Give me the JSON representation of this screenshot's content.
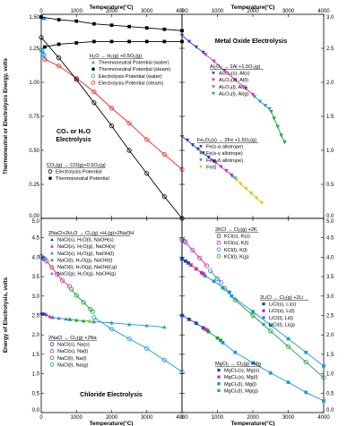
{
  "figure": {
    "top_axis_label": "Temperature(°C)",
    "bottom_axis_label": "Temperature(°C)",
    "top_left_y_label": "Thermoneutral or Electrolysis Energy, volts",
    "bottom_left_y_label": "Energy of Electrolysis, volts"
  },
  "chart_data": [
    {
      "type": "scatter",
      "panel": "top-left",
      "title": "CO₂ or H₂O Electrolysis",
      "xlim": [
        0,
        4000
      ],
      "ylim": [
        0,
        1.5
      ],
      "x_ticks": [
        "0",
        "1000",
        "2000",
        "3000",
        "4000"
      ],
      "y_ticks": [
        "0.00",
        "0.25",
        "0.50",
        "0.75",
        "1.00",
        "1.25",
        "1.50"
      ],
      "legend_groups": [
        {
          "heading": "H₂O → H₂(g) +0.5O₂(g)",
          "entries": [
            "Thermoneutral Potential (water)",
            "Thermoneutral Potential (steam)",
            "Electrolysis Potential (water)",
            "Electrolysis Potential (steam)"
          ]
        },
        {
          "heading": "CO₂(g) → CO(g)+0.5O₂(g)",
          "entries": [
            "Electrolysis Potential",
            "Thermoneutral Potential"
          ]
        }
      ],
      "series": [
        {
          "name": "Thermoneutral Potential (water)",
          "color": "#1a9bd7",
          "marker": "triangle-filled",
          "x": [
            0,
            25,
            50,
            75,
            100
          ],
          "y": [
            1.48,
            1.48,
            1.47,
            1.47,
            1.47
          ]
        },
        {
          "name": "Thermoneutral Potential (steam)",
          "color": "#000000",
          "marker": "square-filled",
          "x": [
            100,
            500,
            1000,
            1500,
            2000,
            2500,
            3000,
            3500,
            4000
          ],
          "y": [
            1.26,
            1.28,
            1.29,
            1.3,
            1.3,
            1.3,
            1.3,
            1.3,
            1.3
          ]
        },
        {
          "name": "Electrolysis Potential (water)",
          "color": "#1a9bd7",
          "marker": "circle-open",
          "x": [
            0,
            25,
            50,
            75,
            100
          ],
          "y": [
            1.24,
            1.23,
            1.21,
            1.2,
            1.17
          ]
        },
        {
          "name": "Electrolysis Potential (steam)",
          "color": "#e8281e",
          "marker": "circle-open",
          "x": [
            100,
            500,
            1000,
            1500,
            2000,
            2500,
            3000,
            3500,
            4000
          ],
          "y": [
            1.17,
            1.12,
            1.03,
            0.93,
            0.81,
            0.7,
            0.58,
            0.47,
            0.36
          ]
        },
        {
          "name": "Electrolysis Potential",
          "color": "#000000",
          "marker": "circle-open",
          "x": [
            0,
            500,
            1000,
            1500,
            2000,
            2500,
            3000,
            3500,
            4000
          ],
          "y": [
            1.33,
            1.18,
            1.02,
            0.85,
            0.68,
            0.5,
            0.33,
            0.16,
            0.0
          ]
        },
        {
          "name": "Thermoneutral Potential",
          "color": "#000000",
          "marker": "square-filled",
          "x": [
            0,
            500,
            1000,
            1500,
            2000,
            2500,
            3000,
            3500,
            4000
          ],
          "y": [
            1.48,
            1.46,
            1.45,
            1.43,
            1.42,
            1.41,
            1.4,
            1.39,
            1.38
          ]
        }
      ]
    },
    {
      "type": "scatter",
      "panel": "top-right",
      "title": "Metal Oxide Electrolysis",
      "xlim": [
        0,
        4000
      ],
      "ylim": [
        0,
        3.0
      ],
      "x_ticks": [
        "0",
        "1000",
        "2000",
        "3000",
        "4000"
      ],
      "y_ticks": [
        "0.0",
        "0.5",
        "1.0",
        "1.5",
        "2.0",
        "2.5",
        "3.0"
      ],
      "legend_groups": [
        {
          "heading": "Al₂O₃ → 2Al +1.5O₂(g)",
          "entries": [
            "Al₂O₃(s), Al(s)",
            "Al₂O₃(s), Al(l)",
            "Al₂O₃(l), Al(l)",
            "Al₂O₃(l), Al(g)"
          ]
        },
        {
          "heading": "Fe₂O₃(s) → 2Fe +1.5O₂(g)",
          "entries": [
            "Fe(s-α allotrope)",
            "Fe(s-γ allotrope)",
            "Fe(s-δ allotrope)",
            "Fe(l)"
          ]
        }
      ],
      "series": [
        {
          "name": "Al₂O₃(s), Al(s)",
          "color": "#1f3fa8",
          "marker": "triangle-down",
          "x": [
            0,
            200,
            400,
            600
          ],
          "y": [
            2.69,
            2.6,
            2.52,
            2.44
          ]
        },
        {
          "name": "Al₂O₃(s), Al(l)",
          "color": "#cc2aa8",
          "marker": "triangle-down",
          "x": [
            660,
            900,
            1200,
            1500,
            1800,
            2000
          ],
          "y": [
            2.41,
            2.31,
            2.17,
            2.04,
            1.91,
            1.82
          ]
        },
        {
          "name": "Al₂O₃(l), Al(l)",
          "color": "#2a8fd0",
          "marker": "triangle-down",
          "x": [
            2050,
            2200,
            2350,
            2470
          ],
          "y": [
            1.79,
            1.72,
            1.66,
            1.61
          ]
        },
        {
          "name": "Al₂O₃(l), Al(g)",
          "color": "#18a038",
          "marker": "triangle-down",
          "x": [
            2520,
            2600,
            2700,
            2800,
            2900
          ],
          "y": [
            1.57,
            1.47,
            1.35,
            1.22,
            1.12
          ]
        },
        {
          "name": "Fe(s-α allotrope)",
          "color": "#1f3fa8",
          "marker": "triangle-down",
          "x": [
            0,
            150,
            300,
            450,
            600,
            750,
            900
          ],
          "y": [
            1.2,
            1.15,
            1.08,
            1.02,
            0.96,
            0.9,
            0.84
          ]
        },
        {
          "name": "Fe(s-γ allotrope)",
          "color": "#cc2aa8",
          "marker": "triangle-down",
          "x": [
            950,
            1100,
            1250,
            1390
          ],
          "y": [
            0.82,
            0.76,
            0.7,
            0.64
          ]
        },
        {
          "name": "Fe(s-δ allotrope)",
          "color": "#2a8fd0",
          "marker": "triangle-down",
          "x": [
            1420,
            1500
          ],
          "y": [
            0.62,
            0.59
          ]
        },
        {
          "name": "Fe(l)",
          "color": "#e0c21a",
          "marker": "triangle-down",
          "x": [
            1540,
            1650,
            1800,
            1950,
            2100,
            2250
          ],
          "y": [
            0.57,
            0.51,
            0.44,
            0.37,
            0.3,
            0.23
          ]
        }
      ]
    },
    {
      "type": "scatter",
      "panel": "bottom-left",
      "title": "Chloride Electrolysis",
      "xlim": [
        0,
        4000
      ],
      "ylim": [
        0,
        5.0
      ],
      "x_ticks": [
        "0",
        "1000",
        "2000",
        "3000",
        "4000"
      ],
      "y_ticks": [
        "0.0",
        "0.5",
        "1.0",
        "1.5",
        "2.0",
        "2.5",
        "3.0",
        "3.5",
        "4.0",
        "4.5",
        "5.0"
      ],
      "legend_groups": [
        {
          "heading": "2NaCl+2H₂O → Cl₂(g) +H₂(g)+2NaOH",
          "entries": [
            "NaCl(s), H₂O(l), NaOH(s)",
            "NaCl(s), H₂O(g), NaOH(s)",
            "NaCl(s), H₂O(g), NaOH(l)",
            "NaCl(l), H₂O(g), NaOH(l)",
            "NaCl(l), H₂O(g), NaOH(l,g)",
            "NaCl(g), H₂O(g), NaOH(g)"
          ]
        },
        {
          "heading": "2NaCl → Cl₂(g) +2Na",
          "entries": [
            "NaCl(s), Na(s)",
            "NaCl(s), Na(l)",
            "NaCl(l), Na(l)",
            "NaCl(l), Na(g)"
          ]
        }
      ],
      "series": [
        {
          "name": "NaCl(s), H₂O(l), NaOH(s)",
          "color": "#1f3fa8",
          "marker": "triangle-filled",
          "x": [
            0,
            50,
            100
          ],
          "y": [
            2.56,
            2.55,
            2.54
          ]
        },
        {
          "name": "NaCl(s), H₂O(g), NaOH(s)",
          "color": "#cc2aa8",
          "marker": "triangle-filled",
          "x": [
            150,
            250,
            318
          ],
          "y": [
            2.52,
            2.47,
            2.45
          ]
        },
        {
          "name": "NaCl(s), H₂O(g), NaOH(l)",
          "color": "#2a8fd0",
          "marker": "triangle-filled",
          "x": [
            330,
            500,
            700,
            801
          ],
          "y": [
            2.45,
            2.43,
            2.41,
            2.4
          ]
        },
        {
          "name": "NaCl(l), H₂O(g), NaOH(l)",
          "color": "#18a038",
          "marker": "triangle-filled",
          "x": [
            820,
            1000,
            1200,
            1388
          ],
          "y": [
            2.4,
            2.38,
            2.36,
            2.35
          ]
        },
        {
          "name": "NaCl(l), H₂O(g), NaOH(l,g)",
          "color": "#e0c21a",
          "marker": "triangle-filled",
          "x": [
            1400,
            1465
          ],
          "y": [
            2.35,
            2.34
          ]
        },
        {
          "name": "NaCl(g), H₂O(g), NaOH(g)",
          "color": "#1a9bd7",
          "marker": "triangle-filled",
          "x": [
            1500,
            2000,
            2500,
            3000,
            3500
          ],
          "y": [
            2.34,
            2.31,
            2.27,
            2.24,
            2.2
          ]
        },
        {
          "name": "NaCl(s), Na(s)",
          "color": "#1f3fa8",
          "marker": "circle-open",
          "x": [
            0,
            50,
            98
          ],
          "y": [
            4.02,
            3.98,
            3.95
          ]
        },
        {
          "name": "NaCl(s), Na(l)",
          "color": "#cc2aa8",
          "marker": "circle-open",
          "x": [
            150,
            300,
            450,
            600,
            801
          ],
          "y": [
            3.9,
            3.74,
            3.56,
            3.4,
            3.25
          ]
        },
        {
          "name": "NaCl(l), Na(l)",
          "color": "#18a038",
          "marker": "circle-open",
          "x": [
            850,
            1000,
            1200,
            1400,
            1465
          ],
          "y": [
            3.18,
            3.02,
            2.84,
            2.66,
            2.6
          ]
        },
        {
          "name": "NaCl(l), Na(g)",
          "color": "#1a9bd7",
          "marker": "circle-open",
          "x": [
            1500,
            2000,
            2500,
            3000,
            3500,
            4000
          ],
          "y": [
            2.45,
            2.15,
            1.9,
            1.65,
            1.35,
            1.05
          ]
        }
      ]
    },
    {
      "type": "scatter",
      "panel": "bottom-right",
      "xlim": [
        0,
        4000
      ],
      "ylim": [
        0,
        5.0
      ],
      "x_ticks": [
        "0",
        "1000",
        "2000",
        "3000",
        "4000"
      ],
      "y_ticks": [
        "0.0",
        "0.5",
        "1.0",
        "1.5",
        "2.0",
        "2.5",
        "3.0",
        "3.5",
        "4.0",
        "4.5",
        "5.0"
      ],
      "legend_groups": [
        {
          "heading": "2KCl → Cl₂(g) +2K",
          "entries": [
            "KCl(s), K(s)",
            "KCl(s), K(l)",
            "KCl(l), K(l)",
            "KCl(l), K(g)"
          ]
        },
        {
          "heading": "2LiCl → Cl₂(g) +2Li",
          "entries": [
            "LiCl(s), Li(s)",
            "LiCl(s), Li(l)",
            "LiCl(l), Li(l)",
            "LiCl(l), Li(g)"
          ]
        },
        {
          "heading": "MgCl₂ → Cl₂(g) +Mg",
          "entries": [
            "MgCl₂(s), Mg(s)",
            "MgCl₂(s), Mg(l)",
            "MgCl₂(l), Mg(l)",
            "MgCl₂(l), Mg(g)"
          ]
        }
      ],
      "series": [
        {
          "name": "KCl(s), K(s)",
          "color": "#1f3fa8",
          "marker": "circle-open",
          "x": [
            0,
            60
          ],
          "y": [
            4.45,
            4.42
          ]
        },
        {
          "name": "KCl(s), K(l)",
          "color": "#cc2aa8",
          "marker": "circle-open",
          "x": [
            100,
            300,
            500,
            700
          ],
          "y": [
            4.38,
            4.18,
            3.98,
            3.78
          ]
        },
        {
          "name": "KCl(l), K(l)",
          "color": "#2a8fd0",
          "marker": "circle-open",
          "x": [
            800,
            1000,
            1100
          ],
          "y": [
            3.65,
            3.45,
            3.35
          ]
        },
        {
          "name": "KCl(l), K(g)",
          "color": "#18a038",
          "marker": "circle-open",
          "x": [
            1200,
            1500,
            2000,
            2500,
            3000,
            3500,
            4000
          ],
          "y": [
            3.2,
            2.9,
            2.5,
            2.1,
            1.7,
            1.3,
            0.9
          ]
        },
        {
          "name": "LiCl(s), Li(s)",
          "color": "#1f3fa8",
          "marker": "square-filled",
          "x": [
            0,
            100,
            180
          ],
          "y": [
            3.95,
            3.9,
            3.85
          ]
        },
        {
          "name": "LiCl(s), Li(l)",
          "color": "#cc2aa8",
          "marker": "square-filled",
          "x": [
            250,
            400,
            550,
            605
          ],
          "y": [
            3.8,
            3.7,
            3.6,
            3.57
          ]
        },
        {
          "name": "LiCl(l), Li(l)",
          "color": "#2a8fd0",
          "marker": "square-filled",
          "x": [
            650,
            900,
            1150,
            1340
          ],
          "y": [
            3.52,
            3.38,
            3.22,
            3.1
          ]
        },
        {
          "name": "LiCl(l), Li(g)",
          "color": "#1a9bd7",
          "marker": "square-filled",
          "x": [
            1400,
            2000,
            2500,
            3000,
            3500,
            4000
          ],
          "y": [
            3.0,
            2.6,
            2.25,
            1.9,
            1.55,
            1.2
          ]
        },
        {
          "name": "MgCl₂(s), Mg(s)",
          "color": "#1f3fa8",
          "marker": "square-filled",
          "x": [
            0,
            200,
            400,
            600
          ],
          "y": [
            2.5,
            2.4,
            2.3,
            2.18
          ]
        },
        {
          "name": "MgCl₂(s), Mg(l)",
          "color": "#cc2aa8",
          "marker": "square-filled",
          "x": [
            650,
            714
          ],
          "y": [
            2.15,
            2.12
          ]
        },
        {
          "name": "MgCl₂(l), Mg(l)",
          "color": "#18a038",
          "marker": "square-filled",
          "x": [
            750,
            1000,
            1090
          ],
          "y": [
            2.08,
            1.92,
            1.86
          ]
        },
        {
          "name": "MgCl₂(l), Mg(g)",
          "color": "#1a9bd7",
          "marker": "square-filled",
          "x": [
            1150,
            1500,
            2000,
            2500,
            3000,
            3500,
            4000
          ],
          "y": [
            1.8,
            1.55,
            1.28,
            1.02,
            0.78,
            0.52,
            0.3
          ]
        }
      ]
    }
  ]
}
